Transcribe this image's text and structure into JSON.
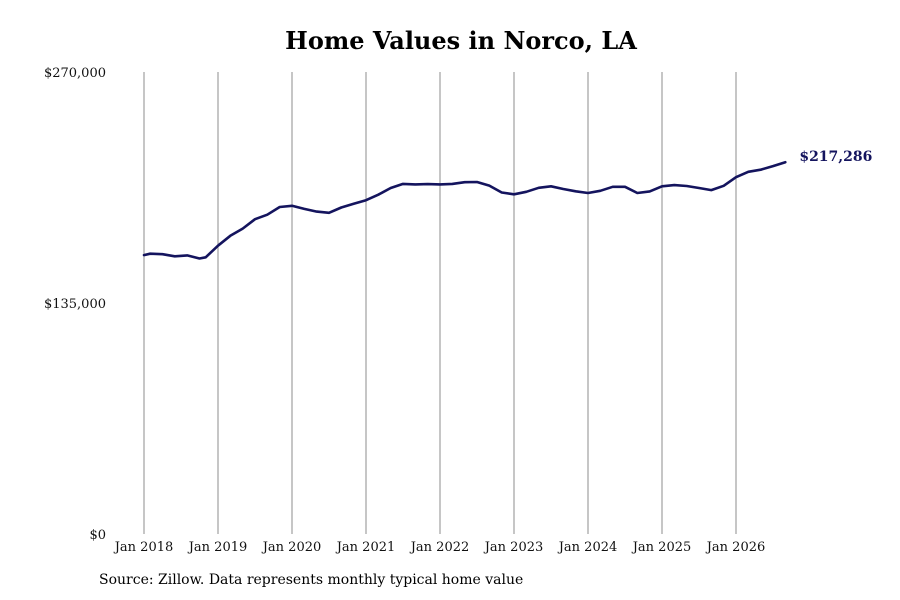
{
  "chart_data": {
    "type": "line",
    "title": "Home Values in Norco, LA",
    "ylim": [
      0,
      270000
    ],
    "yticks": [
      0,
      135000,
      270000
    ],
    "ytick_labels": [
      "$0",
      "$135,000",
      "$270,000"
    ],
    "xticks": [
      "2018-01",
      "2019-01",
      "2020-01",
      "2021-01",
      "2022-01",
      "2023-01",
      "2024-01",
      "2025-01",
      "2026-01"
    ],
    "xtick_labels": [
      "Jan 2018",
      "Jan 2019",
      "Jan 2020",
      "Jan 2021",
      "Jan 2022",
      "Jan 2023",
      "Jan 2024",
      "Jan 2025",
      "Jan 2026"
    ],
    "grid": "vertical",
    "series": [
      {
        "color": "#14145e",
        "points": [
          [
            "2018-01",
            163000
          ],
          [
            "2018-02",
            163800
          ],
          [
            "2018-04",
            163500
          ],
          [
            "2018-06",
            162300
          ],
          [
            "2018-08",
            162800
          ],
          [
            "2018-10",
            161000
          ],
          [
            "2018-11",
            161700
          ],
          [
            "2019-01",
            168500
          ],
          [
            "2019-03",
            174300
          ],
          [
            "2019-05",
            178500
          ],
          [
            "2019-07",
            184000
          ],
          [
            "2019-09",
            186600
          ],
          [
            "2019-11",
            191100
          ],
          [
            "2020-01",
            191800
          ],
          [
            "2020-03",
            190000
          ],
          [
            "2020-05",
            188400
          ],
          [
            "2020-07",
            187700
          ],
          [
            "2020-09",
            190800
          ],
          [
            "2020-11",
            193000
          ],
          [
            "2021-01",
            195100
          ],
          [
            "2021-03",
            198300
          ],
          [
            "2021-05",
            202200
          ],
          [
            "2021-07",
            204600
          ],
          [
            "2021-09",
            204300
          ],
          [
            "2021-11",
            204500
          ],
          [
            "2022-01",
            204300
          ],
          [
            "2022-03",
            204600
          ],
          [
            "2022-05",
            205600
          ],
          [
            "2022-07",
            205700
          ],
          [
            "2022-09",
            203600
          ],
          [
            "2022-11",
            199600
          ],
          [
            "2023-01",
            198500
          ],
          [
            "2023-03",
            200000
          ],
          [
            "2023-05",
            202300
          ],
          [
            "2023-07",
            203200
          ],
          [
            "2023-09",
            201600
          ],
          [
            "2023-11",
            200300
          ],
          [
            "2024-01",
            199300
          ],
          [
            "2024-03",
            200600
          ],
          [
            "2024-05",
            202900
          ],
          [
            "2024-07",
            202900
          ],
          [
            "2024-09",
            199300
          ],
          [
            "2024-11",
            200200
          ],
          [
            "2025-01",
            203200
          ],
          [
            "2025-03",
            203900
          ],
          [
            "2025-05",
            203400
          ],
          [
            "2025-07",
            202200
          ],
          [
            "2025-09",
            201000
          ],
          [
            "2025-11",
            203500
          ],
          [
            "2026-01",
            208500
          ],
          [
            "2026-03",
            211700
          ],
          [
            "2026-05",
            212900
          ],
          [
            "2026-07",
            215000
          ],
          [
            "2026-09",
            217286
          ]
        ]
      }
    ],
    "end_label": "$217,286",
    "source_note": "Source: Zillow. Data represents monthly typical home value"
  }
}
